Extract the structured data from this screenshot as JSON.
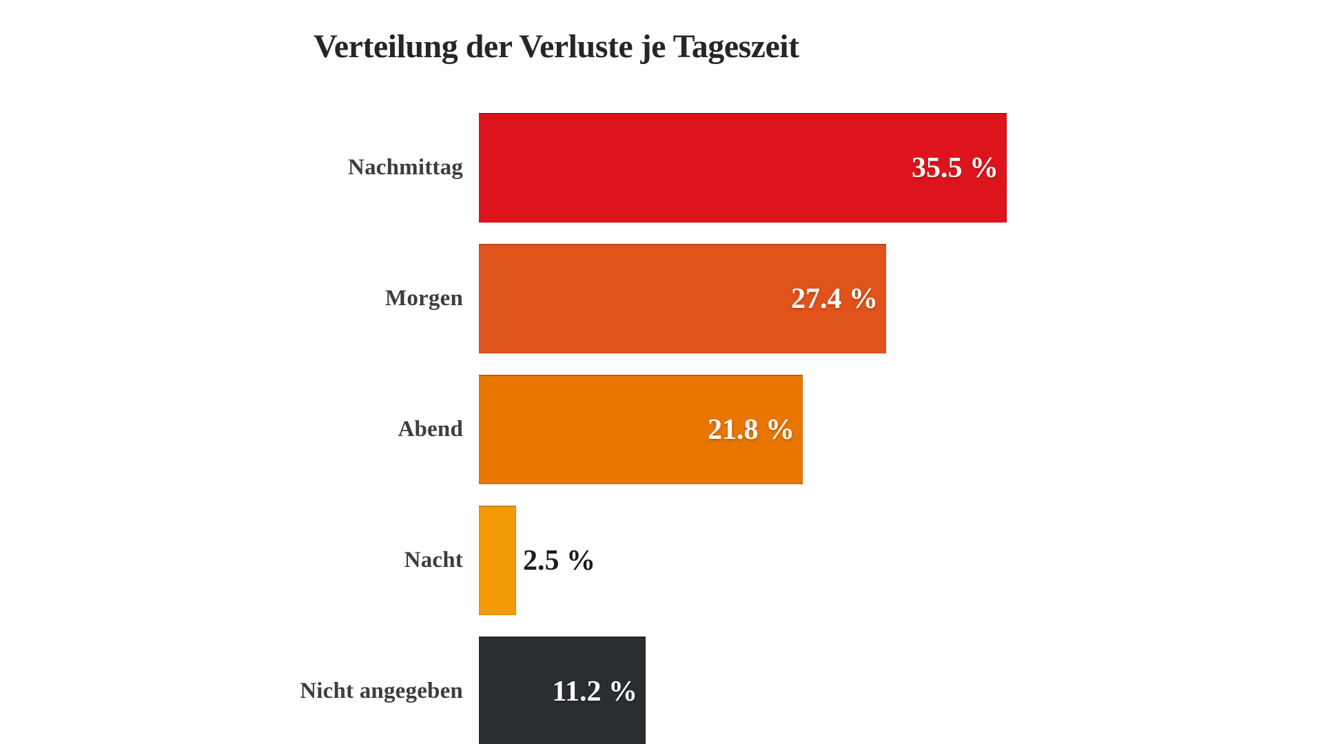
{
  "page": {
    "background_color": "#ffffff"
  },
  "chart_data": {
    "type": "bar",
    "orientation": "horizontal",
    "title": "Verteilung der Verluste je Tageszeit",
    "xlabel": "",
    "ylabel": "",
    "unit": "%",
    "grid": false,
    "legend_position": "none",
    "axis_ticks_visible": false,
    "xlim": [
      0,
      35.5
    ],
    "categories": [
      "Nachmittag",
      "Morgen",
      "Abend",
      "Nacht",
      "Nicht angegeben"
    ],
    "values": [
      35.5,
      27.4,
      21.8,
      2.5,
      11.2
    ],
    "value_labels": [
      "35.5 %",
      "27.4 %",
      "21.8 %",
      "2.5 %",
      "11.2 %"
    ],
    "bar_colors": [
      "#de141c",
      "#e0531a",
      "#e87500",
      "#f49a07",
      "#2a2d31"
    ],
    "value_label_placement": [
      "inside",
      "inside",
      "inside",
      "outside",
      "inside"
    ]
  },
  "styles": {
    "title_color": "#262626",
    "category_label_color": "#3d3d3d",
    "value_label_inside_color": "#ffffff",
    "value_label_outside_color": "#1c1c1c"
  }
}
